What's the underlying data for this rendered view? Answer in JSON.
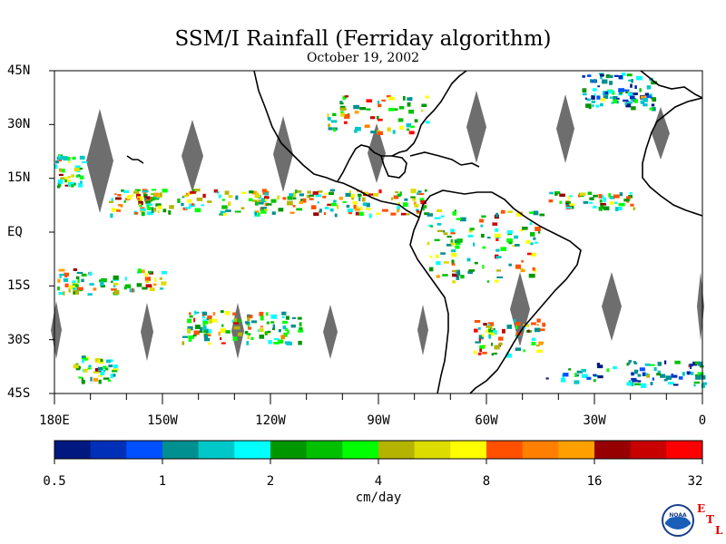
{
  "title": "SSM/I Rainfall (Ferriday algorithm)",
  "subtitle": "October 19, 2002",
  "lat_labels": [
    "45N",
    "30N",
    "15N",
    "EQ",
    "15S",
    "30S",
    "45S"
  ],
  "lon_labels": [
    "180E",
    "150W",
    "120W",
    "90W",
    "60W",
    "30W",
    "0"
  ],
  "colorbar": {
    "colors": [
      "#001880",
      "#0030b8",
      "#0050ff",
      "#009090",
      "#00c8c8",
      "#00ffff",
      "#009600",
      "#00c000",
      "#00ff00",
      "#b4b400",
      "#dcdc00",
      "#ffff00",
      "#ff5000",
      "#ff8000",
      "#ffa000",
      "#960000",
      "#c80000",
      "#ff0000"
    ],
    "tick_labels": [
      "0.5",
      "1",
      "2",
      "4",
      "8",
      "16",
      "32"
    ],
    "unit": "cm/day"
  },
  "logo": {
    "noaa_text": "NOAA",
    "etl_letters": [
      "E",
      "T",
      "L"
    ]
  },
  "colors": {
    "swath_gap": "#6e6e6e",
    "coastline": "#000000"
  }
}
